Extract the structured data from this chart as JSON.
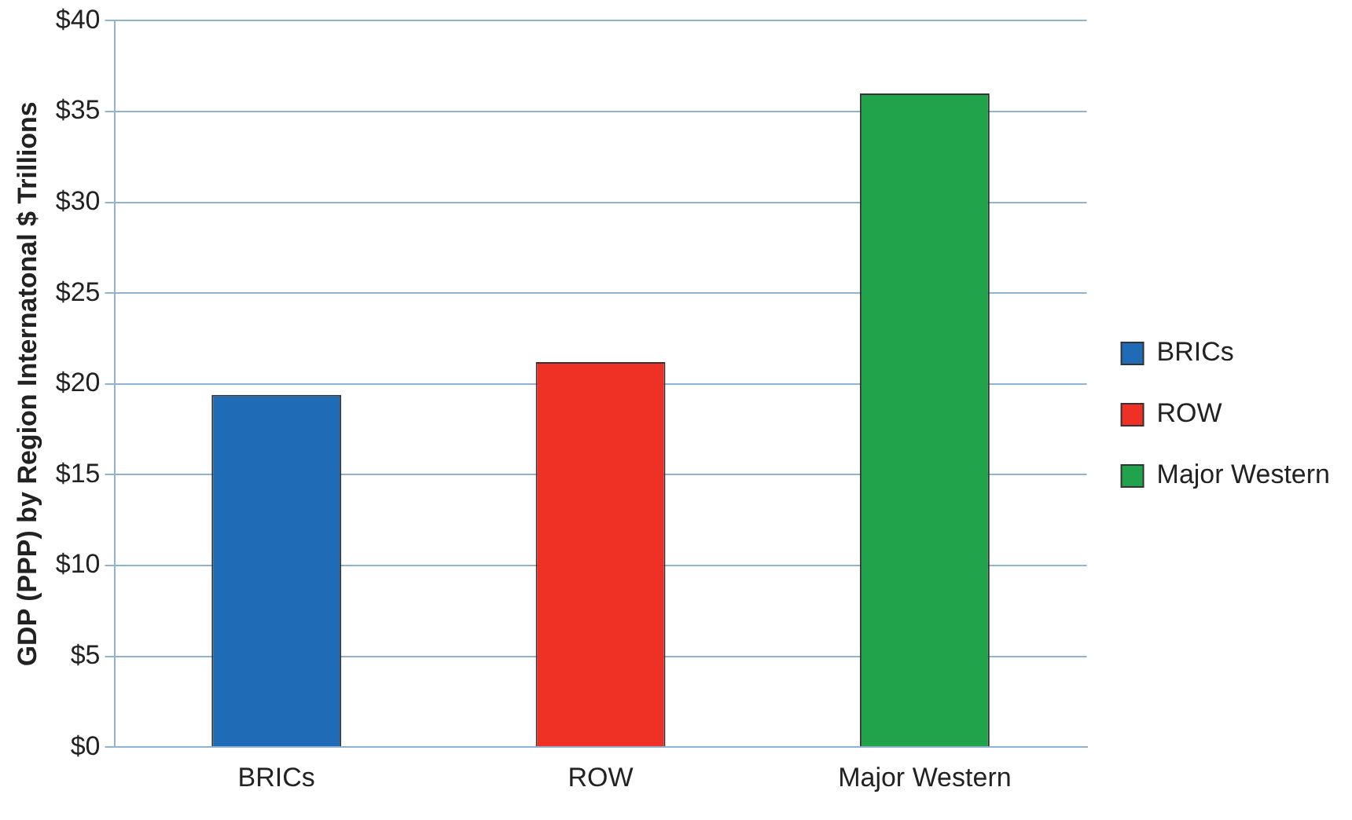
{
  "chart_data": {
    "type": "bar",
    "ylabel": "GDP (PPP) by Region Internatonal $ Trillions",
    "categories": [
      "BRICs",
      "ROW",
      "Major Western"
    ],
    "series": [
      {
        "name": "BRICs",
        "color": "#1f6bb5",
        "values": [
          19.4,
          null,
          null
        ]
      },
      {
        "name": "ROW",
        "color": "#ee3124",
        "values": [
          null,
          21.2,
          null
        ]
      },
      {
        "name": "Major Western",
        "color": "#21a34c",
        "values": [
          null,
          null,
          36.0
        ]
      }
    ],
    "ylim": [
      0,
      40
    ],
    "yticks": [
      {
        "value": 0,
        "label": "$0"
      },
      {
        "value": 5,
        "label": "$5"
      },
      {
        "value": 10,
        "label": "$10"
      },
      {
        "value": 15,
        "label": "$15"
      },
      {
        "value": 20,
        "label": "$20"
      },
      {
        "value": 25,
        "label": "$25"
      },
      {
        "value": 30,
        "label": "$30"
      },
      {
        "value": 35,
        "label": "$35"
      },
      {
        "value": 40,
        "label": "$40"
      }
    ],
    "grid": "y",
    "legend": "right"
  }
}
